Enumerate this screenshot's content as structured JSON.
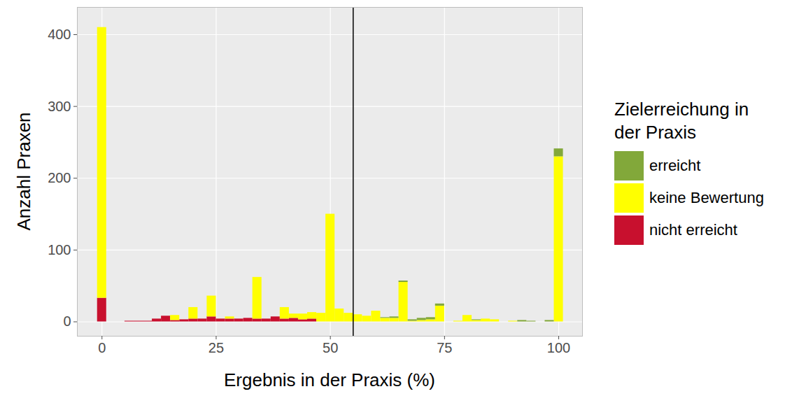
{
  "chart_data": {
    "type": "histogram",
    "x_label": "Ergebnis in der Praxis (%)",
    "y_label": "Anzahl Praxen",
    "legend_title": "Zielerreichung in der Praxis",
    "bins": [
      -1,
      1,
      3,
      5,
      7,
      9,
      11,
      13,
      15,
      17,
      19,
      21,
      23,
      25,
      27,
      29,
      31,
      33,
      35,
      37,
      39,
      41,
      43,
      45,
      47,
      49,
      51,
      53,
      55,
      57,
      59,
      61,
      63,
      65,
      67,
      69,
      71,
      73,
      75,
      77,
      79,
      81,
      83,
      85,
      87,
      89,
      91,
      93,
      95,
      97,
      99,
      101
    ],
    "series": [
      {
        "name": "nicht erreicht",
        "color": "#C8102E",
        "values": [
          33,
          0,
          0,
          1,
          1,
          1,
          4,
          8,
          2,
          3,
          4,
          4,
          7,
          4,
          4,
          4,
          5,
          4,
          4,
          7,
          4,
          5,
          3,
          4,
          0,
          0,
          0,
          0,
          0,
          0,
          0,
          0,
          0,
          0,
          0,
          0,
          0,
          0,
          0,
          0,
          0,
          0,
          0,
          0,
          0,
          0,
          0,
          0,
          0,
          0,
          0
        ]
      },
      {
        "name": "keine Bewertung",
        "color": "#FFFF00",
        "values": [
          377,
          0,
          0,
          0,
          0,
          0,
          0,
          0,
          7,
          0,
          16,
          0,
          29,
          0,
          3,
          0,
          0,
          58,
          0,
          0,
          16,
          6,
          8,
          9,
          12,
          150,
          18,
          12,
          10,
          8,
          15,
          5,
          5,
          55,
          1,
          2,
          3,
          22,
          0,
          1,
          9,
          2,
          4,
          3,
          0,
          1,
          0,
          0,
          0,
          0,
          230
        ]
      },
      {
        "name": "erreicht",
        "color": "#82A83A",
        "values": [
          0,
          0,
          0,
          0,
          0,
          0,
          0,
          0,
          0,
          0,
          0,
          0,
          0,
          0,
          0,
          0,
          0,
          0,
          0,
          0,
          0,
          0,
          0,
          0,
          0,
          0,
          0,
          0,
          0,
          0,
          0,
          1,
          2,
          2,
          2,
          3,
          3,
          3,
          0,
          0,
          0,
          1,
          0,
          0,
          0,
          0,
          2,
          1,
          0,
          2,
          11
        ]
      }
    ],
    "legend_order": [
      "erreicht",
      "keine Bewertung",
      "nicht erreicht"
    ],
    "reference_line": 55,
    "stacked": true,
    "legend": "right",
    "grid": true,
    "xlim": [
      -5.4,
      105.2
    ],
    "xticks": [
      0,
      25,
      50,
      75,
      100
    ],
    "ylim": [
      -20,
      438
    ],
    "yticks": [
      0,
      100,
      200,
      300,
      400
    ]
  }
}
